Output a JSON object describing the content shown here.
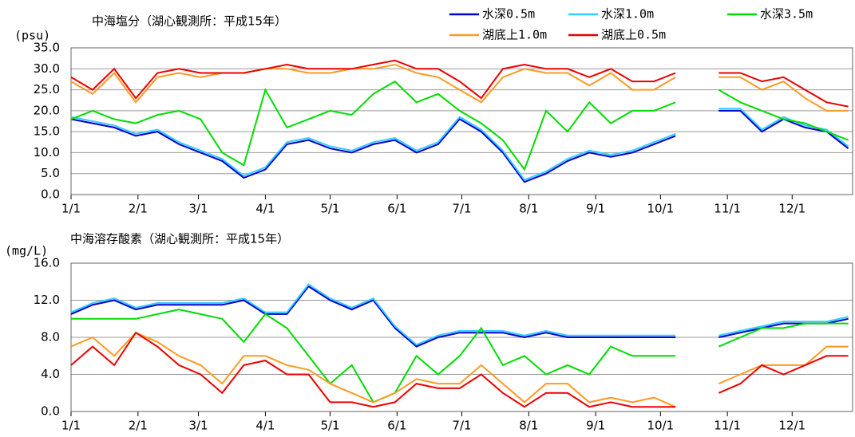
{
  "chart_data": [
    {
      "type": "line",
      "title": "中海塩分（湖心観測所：平成15年）",
      "y_label": "(psu)",
      "x": [
        0,
        10,
        20,
        30,
        40,
        50,
        60,
        70,
        80,
        90,
        100,
        110,
        120,
        130,
        140,
        150,
        160,
        170,
        180,
        190,
        200,
        210,
        220,
        230,
        240,
        250,
        260,
        270,
        280,
        290,
        300,
        310,
        320,
        330,
        340,
        350,
        360
      ],
      "xlim": [
        0,
        362
      ],
      "xticks": [
        {
          "value": 0,
          "label": "1/1"
        },
        {
          "value": 31,
          "label": "2/1"
        },
        {
          "value": 59,
          "label": "3/1"
        },
        {
          "value": 90,
          "label": "4/1"
        },
        {
          "value": 120,
          "label": "5/1"
        },
        {
          "value": 151,
          "label": "6/1"
        },
        {
          "value": 181,
          "label": "7/1"
        },
        {
          "value": 212,
          "label": "8/1"
        },
        {
          "value": 243,
          "label": "9/1"
        },
        {
          "value": 273,
          "label": "10/1"
        },
        {
          "value": 304,
          "label": "11/1"
        },
        {
          "value": 334,
          "label": "12/1"
        }
      ],
      "ylim": [
        0,
        35
      ],
      "yticks": [
        {
          "value": 0,
          "label": "0.0"
        },
        {
          "value": 5,
          "label": "5.0"
        },
        {
          "value": 10,
          "label": "10.0"
        },
        {
          "value": 15,
          "label": "15.0"
        },
        {
          "value": 20,
          "label": "20.0"
        },
        {
          "value": 25,
          "label": "25.0"
        },
        {
          "value": 30,
          "label": "30.0"
        },
        {
          "value": 35,
          "label": "35.0"
        }
      ],
      "grid": true,
      "series": [
        {
          "name": "水深0.5m",
          "color": "#0000cc",
          "values": [
            18,
            17,
            16,
            14,
            15,
            12,
            10,
            8,
            4,
            6,
            12,
            13,
            11,
            10,
            12,
            13,
            10,
            12,
            18,
            15,
            10,
            3,
            5,
            8,
            10,
            9,
            10,
            12,
            14,
            null,
            20,
            20,
            15,
            18,
            16,
            15,
            11
          ]
        },
        {
          "name": "水深1.0m",
          "color": "#33ccff",
          "values": [
            18.5,
            17.5,
            16.5,
            14.5,
            15.5,
            12.5,
            10.5,
            8.5,
            4.5,
            6.5,
            12.5,
            13.5,
            11.5,
            10.5,
            12.5,
            13.5,
            10.5,
            12.5,
            18.5,
            15.5,
            10.5,
            3.5,
            5.5,
            8.5,
            10.5,
            9.5,
            10.5,
            12.5,
            14.5,
            null,
            20.5,
            20.5,
            15.5,
            18.5,
            16.5,
            15.5,
            11.5
          ]
        },
        {
          "name": "水深3.5m",
          "color": "#00dd00",
          "values": [
            18,
            20,
            18,
            17,
            19,
            20,
            18,
            10,
            7,
            25,
            16,
            18,
            20,
            19,
            24,
            27,
            22,
            24,
            20,
            17,
            13,
            6,
            20,
            15,
            22,
            17,
            20,
            20,
            22,
            null,
            25,
            22,
            20,
            18,
            17,
            15,
            13
          ]
        },
        {
          "name": "湖底上1.0m",
          "color": "#ff9922",
          "values": [
            27,
            24,
            29,
            22,
            28,
            29,
            28,
            29,
            29,
            30,
            30,
            29,
            29,
            30,
            30,
            31,
            29,
            28,
            25,
            22,
            28,
            30,
            29,
            29,
            26,
            29,
            25,
            25,
            28,
            null,
            28,
            28,
            25,
            27,
            23,
            20,
            20
          ]
        },
        {
          "name": "湖底上0.5m",
          "color": "#ee0000",
          "values": [
            28,
            25,
            30,
            23,
            29,
            30,
            29,
            29,
            29,
            30,
            31,
            30,
            30,
            30,
            31,
            32,
            30,
            30,
            27,
            23,
            30,
            31,
            30,
            30,
            28,
            30,
            27,
            27,
            29,
            null,
            29,
            29,
            27,
            28,
            25,
            22,
            21
          ]
        }
      ]
    },
    {
      "type": "line",
      "title": "中海溶存酸素（湖心観測所：平成15年）",
      "y_label": "(mg/L)",
      "x": [
        0,
        10,
        20,
        30,
        40,
        50,
        60,
        70,
        80,
        90,
        100,
        110,
        120,
        130,
        140,
        150,
        160,
        170,
        180,
        190,
        200,
        210,
        220,
        230,
        240,
        250,
        260,
        270,
        280,
        290,
        300,
        310,
        320,
        330,
        340,
        350,
        360
      ],
      "xlim": [
        0,
        362
      ],
      "xticks": [
        {
          "value": 0,
          "label": "1/1"
        },
        {
          "value": 31,
          "label": "2/1"
        },
        {
          "value": 59,
          "label": "3/1"
        },
        {
          "value": 90,
          "label": "4/1"
        },
        {
          "value": 120,
          "label": "5/1"
        },
        {
          "value": 151,
          "label": "6/1"
        },
        {
          "value": 181,
          "label": "7/1"
        },
        {
          "value": 212,
          "label": "8/1"
        },
        {
          "value": 243,
          "label": "9/1"
        },
        {
          "value": 273,
          "label": "10/1"
        },
        {
          "value": 304,
          "label": "11/1"
        },
        {
          "value": 334,
          "label": "12/1"
        }
      ],
      "ylim": [
        0,
        16
      ],
      "yticks": [
        {
          "value": 0,
          "label": "0.0"
        },
        {
          "value": 4,
          "label": "4.0"
        },
        {
          "value": 8,
          "label": "8.0"
        },
        {
          "value": 12,
          "label": "12.0"
        },
        {
          "value": 16,
          "label": "16.0"
        }
      ],
      "grid": true,
      "series": [
        {
          "color": "#0000cc",
          "values": [
            10.5,
            11.5,
            12,
            11,
            11.5,
            11.5,
            11.5,
            11.5,
            12,
            10.5,
            10.5,
            13.5,
            12,
            11,
            12,
            9,
            7,
            8,
            8.5,
            8.5,
            8.5,
            8,
            8.5,
            8,
            8,
            8,
            8,
            8,
            8,
            null,
            8,
            8.5,
            9,
            9.5,
            9.5,
            9.5,
            10
          ]
        },
        {
          "color": "#33ccff",
          "values": [
            10.7,
            11.7,
            12.2,
            11.2,
            11.7,
            11.7,
            11.7,
            11.7,
            12.2,
            10.7,
            10.7,
            13.7,
            12.2,
            11.2,
            12.2,
            9.2,
            7.2,
            8.2,
            8.7,
            8.7,
            8.7,
            8.2,
            8.7,
            8.2,
            8.2,
            8.2,
            8.2,
            8.2,
            8.2,
            null,
            8.2,
            8.7,
            9.2,
            9.7,
            9.7,
            9.7,
            10.2
          ]
        },
        {
          "color": "#00dd00",
          "values": [
            10,
            10,
            10,
            10,
            10.5,
            11,
            10.5,
            10,
            7.5,
            10.5,
            9,
            6,
            3,
            5,
            1,
            2,
            6,
            4,
            6,
            9,
            5,
            6,
            4,
            5,
            4,
            7,
            6,
            6,
            6,
            null,
            7,
            8,
            9,
            9,
            9.5,
            9.5,
            9.5
          ]
        },
        {
          "color": "#ff9922",
          "values": [
            7,
            8,
            6,
            8.5,
            7.5,
            6,
            5,
            3,
            6,
            6,
            5,
            4.5,
            3,
            2,
            1,
            2,
            3.5,
            3,
            3,
            5,
            3,
            1,
            3,
            3,
            1,
            1.5,
            1,
            1.5,
            0.5,
            null,
            3,
            4,
            5,
            5,
            5,
            7,
            7
          ]
        },
        {
          "color": "#ee0000",
          "values": [
            5,
            7,
            5,
            8.5,
            7,
            5,
            4,
            2,
            5,
            5.5,
            4,
            4,
            1,
            1,
            0.5,
            1,
            3,
            2.5,
            2.5,
            4,
            2,
            0.5,
            2,
            2,
            0.5,
            1,
            0.5,
            0.5,
            0.5,
            null,
            2,
            3,
            5,
            4,
            5,
            6,
            6
          ]
        }
      ]
    }
  ]
}
